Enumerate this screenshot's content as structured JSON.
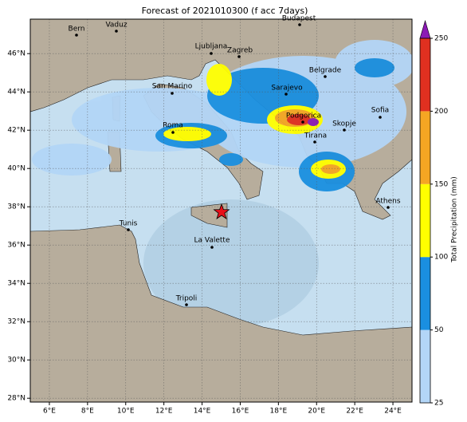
{
  "title": "Forecast of 2021010300 (f acc 7days)",
  "map": {
    "xlim": [
      5,
      25
    ],
    "ylim": [
      27.8,
      47.8
    ],
    "xticks": [
      {
        "value": 6,
        "label": "6°E"
      },
      {
        "value": 8,
        "label": "8°E"
      },
      {
        "value": 10,
        "label": "10°E"
      },
      {
        "value": 12,
        "label": "12°E"
      },
      {
        "value": 14,
        "label": "14°E"
      },
      {
        "value": 16,
        "label": "16°E"
      },
      {
        "value": 18,
        "label": "18°E"
      },
      {
        "value": 20,
        "label": "20°E"
      },
      {
        "value": 22,
        "label": "22°E"
      },
      {
        "value": 24,
        "label": "24°E"
      }
    ],
    "yticks": [
      {
        "value": 28,
        "label": "28°N"
      },
      {
        "value": 30,
        "label": "30°N"
      },
      {
        "value": 32,
        "label": "32°N"
      },
      {
        "value": 34,
        "label": "34°N"
      },
      {
        "value": 36,
        "label": "36°N"
      },
      {
        "value": 38,
        "label": "38°N"
      },
      {
        "value": 40,
        "label": "40°N"
      },
      {
        "value": 42,
        "label": "42°N"
      },
      {
        "value": 44,
        "label": "44°N"
      },
      {
        "value": 46,
        "label": "46°N"
      }
    ],
    "grid": true,
    "cities": [
      "Bern",
      "Vaduz",
      "Budapest",
      "Ljubljana",
      "Zagreb",
      "Belgrade",
      "San Marino",
      "Sarajevo",
      "Sofia",
      "Podgorica",
      "Skopje",
      "Roma",
      "Tirana",
      "Athens",
      "Tunis",
      "La Valette",
      "Tripoli"
    ]
  },
  "colorbar": {
    "label": "Total Precipitation (mm)",
    "levels": [
      25,
      50,
      100,
      150,
      200,
      250
    ],
    "colors": [
      "#b3d6f7",
      "#1a8fe0",
      "#ffff00",
      "#f5a623",
      "#e03020"
    ],
    "extend_color": "#8b1ab5"
  }
}
